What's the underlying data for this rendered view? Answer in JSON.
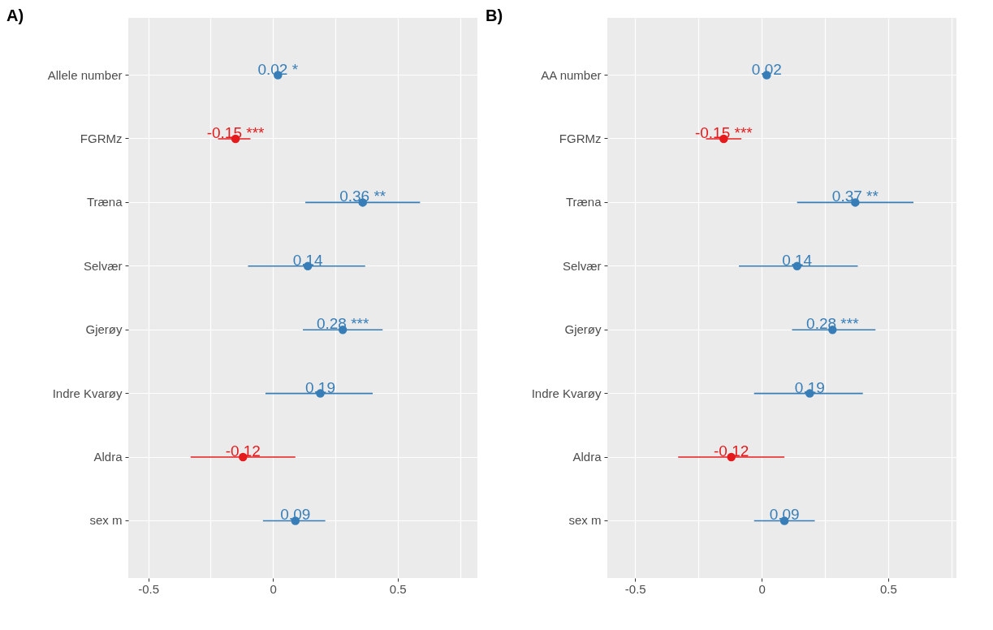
{
  "chart_data": [
    {
      "type": "scatter",
      "title": "A)",
      "orientation": "horizontal",
      "categories": [
        "Allele number",
        "FGRMz",
        "Træna",
        "Selvær",
        "Gjerøy",
        "Indre Kvarøy",
        "Aldra",
        "sex m"
      ],
      "values": [
        0.02,
        -0.15,
        0.36,
        0.14,
        0.28,
        0.19,
        -0.12,
        0.09
      ],
      "errors": [
        null,
        [
          -0.22,
          -0.09
        ],
        [
          0.13,
          0.59
        ],
        [
          -0.1,
          0.37
        ],
        [
          0.12,
          0.44
        ],
        [
          -0.03,
          0.4
        ],
        [
          -0.33,
          0.09
        ],
        [
          -0.04,
          0.21
        ]
      ],
      "colors": [
        "#377eb8",
        "#e41a1c",
        "#377eb8",
        "#377eb8",
        "#377eb8",
        "#377eb8",
        "#e41a1c",
        "#377eb8"
      ],
      "value_labels": [
        "0.02 *",
        "-0.15 ***",
        "0.36 **",
        "0.14",
        "0.28 ***",
        "0.19",
        "-0.12",
        "0.09"
      ],
      "xlim": [
        -0.58,
        0.82
      ],
      "xticks": [
        -0.5,
        {
          "value": -0.25,
          "label": null
        },
        0,
        {
          "value": 0.25,
          "label": null
        },
        0.5,
        {
          "value": 0.75,
          "label": null
        }
      ],
      "grid": true,
      "marker": "circle"
    },
    {
      "type": "scatter",
      "title": "B)",
      "orientation": "horizontal",
      "categories": [
        "AA number",
        "FGRMz",
        "Træna",
        "Selvær",
        "Gjerøy",
        "Indre Kvarøy",
        "Aldra",
        "sex m"
      ],
      "values": [
        0.02,
        -0.15,
        0.37,
        0.14,
        0.28,
        0.19,
        -0.12,
        0.09
      ],
      "errors": [
        null,
        [
          -0.22,
          -0.08
        ],
        [
          0.14,
          0.6
        ],
        [
          -0.09,
          0.38
        ],
        [
          0.12,
          0.45
        ],
        [
          -0.03,
          0.4
        ],
        [
          -0.33,
          0.09
        ],
        [
          -0.03,
          0.21
        ]
      ],
      "colors": [
        "#377eb8",
        "#e41a1c",
        "#377eb8",
        "#377eb8",
        "#377eb8",
        "#377eb8",
        "#e41a1c",
        "#377eb8"
      ],
      "value_labels": [
        "0.02",
        "-0.15 ***",
        "0.37 **",
        "0.14",
        "0.28 ***",
        "0.19",
        "-0.12",
        "0.09"
      ],
      "xlim": [
        -0.61,
        0.77
      ],
      "xticks": [
        -0.5,
        {
          "value": -0.25,
          "label": null
        },
        0,
        {
          "value": 0.25,
          "label": null
        },
        0.5,
        {
          "value": 0.75,
          "label": null
        }
      ],
      "grid": true,
      "marker": "circle"
    }
  ]
}
